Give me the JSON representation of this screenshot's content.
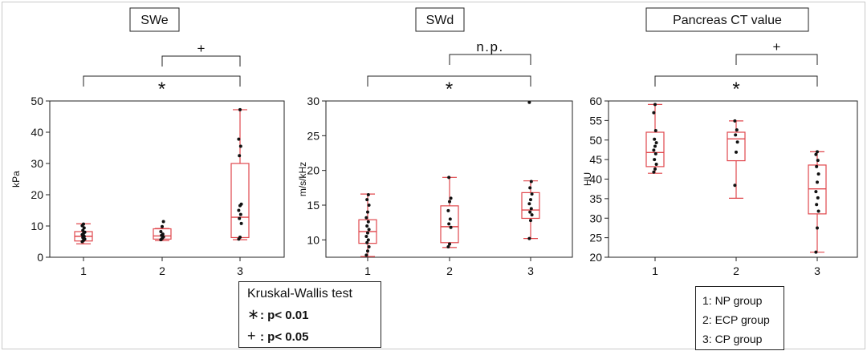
{
  "chart_data": [
    {
      "type": "box",
      "title": "SWe",
      "ylabel": "kPa",
      "xlabel": "",
      "ylim": [
        0,
        50
      ],
      "yticks": [
        0,
        10,
        20,
        30,
        40,
        50
      ],
      "categories": [
        "1",
        "2",
        "3"
      ],
      "boxes": [
        {
          "min": 4.3,
          "q1": 5.2,
          "median": 6.7,
          "q3": 8.2,
          "max": 10.7
        },
        {
          "min": 5.3,
          "q1": 5.8,
          "median": 6.8,
          "q3": 9.1,
          "max": 9.2
        },
        {
          "min": 5.6,
          "q1": 6.3,
          "median": 12.8,
          "q3": 30.0,
          "max": 47.2
        }
      ],
      "points": [
        [
          5.0,
          5.4,
          5.8,
          6.3,
          6.7,
          7.2,
          7.6,
          8.0,
          8.6,
          9.4,
          10.1,
          10.6
        ],
        [
          5.6,
          6.0,
          6.5,
          7.0,
          7.4,
          8.2,
          9.8,
          11.4
        ],
        [
          5.8,
          6.4,
          10.8,
          12.4,
          13.7,
          15.0,
          16.5,
          17.0,
          32.5,
          35.5,
          37.8,
          47.2
        ]
      ],
      "comparisons": [
        {
          "from": "1",
          "to": "3",
          "symbol": "*"
        },
        {
          "from": "2",
          "to": "3",
          "symbol": "+"
        }
      ]
    },
    {
      "type": "box",
      "title": "SWd",
      "ylabel": "m/s/kHz",
      "xlabel": "",
      "ylim": [
        7.5,
        30
      ],
      "yticks": [
        10,
        15,
        20,
        25,
        30
      ],
      "categories": [
        "1",
        "2",
        "3"
      ],
      "boxes": [
        {
          "min": 7.6,
          "q1": 9.5,
          "median": 11.2,
          "q3": 12.9,
          "max": 16.6
        },
        {
          "min": 8.9,
          "q1": 9.6,
          "median": 11.9,
          "q3": 14.9,
          "max": 19.0
        },
        {
          "min": 10.2,
          "q1": 13.1,
          "median": 14.3,
          "q3": 16.8,
          "max": 18.5
        }
      ],
      "points": [
        [
          7.8,
          8.4,
          9.0,
          9.6,
          10.0,
          10.5,
          11.0,
          11.5,
          12.0,
          12.6,
          13.2,
          14.0,
          15.0,
          15.8,
          16.5
        ],
        [
          9.0,
          9.4,
          11.8,
          12.3,
          13.0,
          14.2,
          15.5,
          16.0,
          19.0
        ],
        [
          10.2,
          12.8,
          13.6,
          14.0,
          14.5,
          15.2,
          15.8,
          16.6,
          17.5,
          18.4,
          29.8
        ]
      ],
      "comparisons": [
        {
          "from": "1",
          "to": "3",
          "symbol": "*"
        },
        {
          "from": "2",
          "to": "3",
          "symbol": "n.p."
        }
      ]
    },
    {
      "type": "box",
      "title": "Pancreas CT value",
      "ylabel": "HU",
      "xlabel": "",
      "ylim": [
        20,
        60
      ],
      "yticks": [
        20,
        25,
        30,
        35,
        40,
        45,
        50,
        55,
        60
      ],
      "categories": [
        "1",
        "2",
        "3"
      ],
      "boxes": [
        {
          "min": 41.5,
          "q1": 43.2,
          "median": 46.8,
          "q3": 52.0,
          "max": 59.1
        },
        {
          "min": 35.1,
          "q1": 44.7,
          "median": 50.3,
          "q3": 52.0,
          "max": 54.9
        },
        {
          "min": 21.3,
          "q1": 31.1,
          "median": 37.5,
          "q3": 43.6,
          "max": 47.0
        }
      ],
      "points": [
        [
          41.8,
          42.6,
          43.8,
          45.0,
          46.5,
          47.4,
          48.4,
          49.3,
          50.2,
          52.4,
          57.0,
          59.1
        ],
        [
          38.4,
          46.9,
          49.5,
          51.3,
          52.6,
          54.9
        ],
        [
          21.3,
          27.5,
          31.8,
          33.5,
          35.2,
          36.8,
          39.2,
          41.3,
          43.2,
          44.8,
          46.3,
          47.0
        ]
      ],
      "comparisons": [
        {
          "from": "1",
          "to": "3",
          "symbol": "*"
        },
        {
          "from": "2",
          "to": "3",
          "symbol": "+"
        }
      ]
    }
  ],
  "colors": {
    "box": "#e0474c",
    "point": "#111111",
    "axis": "#222222"
  },
  "test_legend": {
    "title": "Kruskal-Wallis test",
    "rows": [
      {
        "symbol": "∗",
        "text": ": p< 0.01"
      },
      {
        "symbol": "+",
        "text": ": p< 0.05"
      }
    ]
  },
  "group_legend": {
    "rows": [
      "1: NP group",
      "2: ECP group",
      "3: CP group"
    ]
  }
}
